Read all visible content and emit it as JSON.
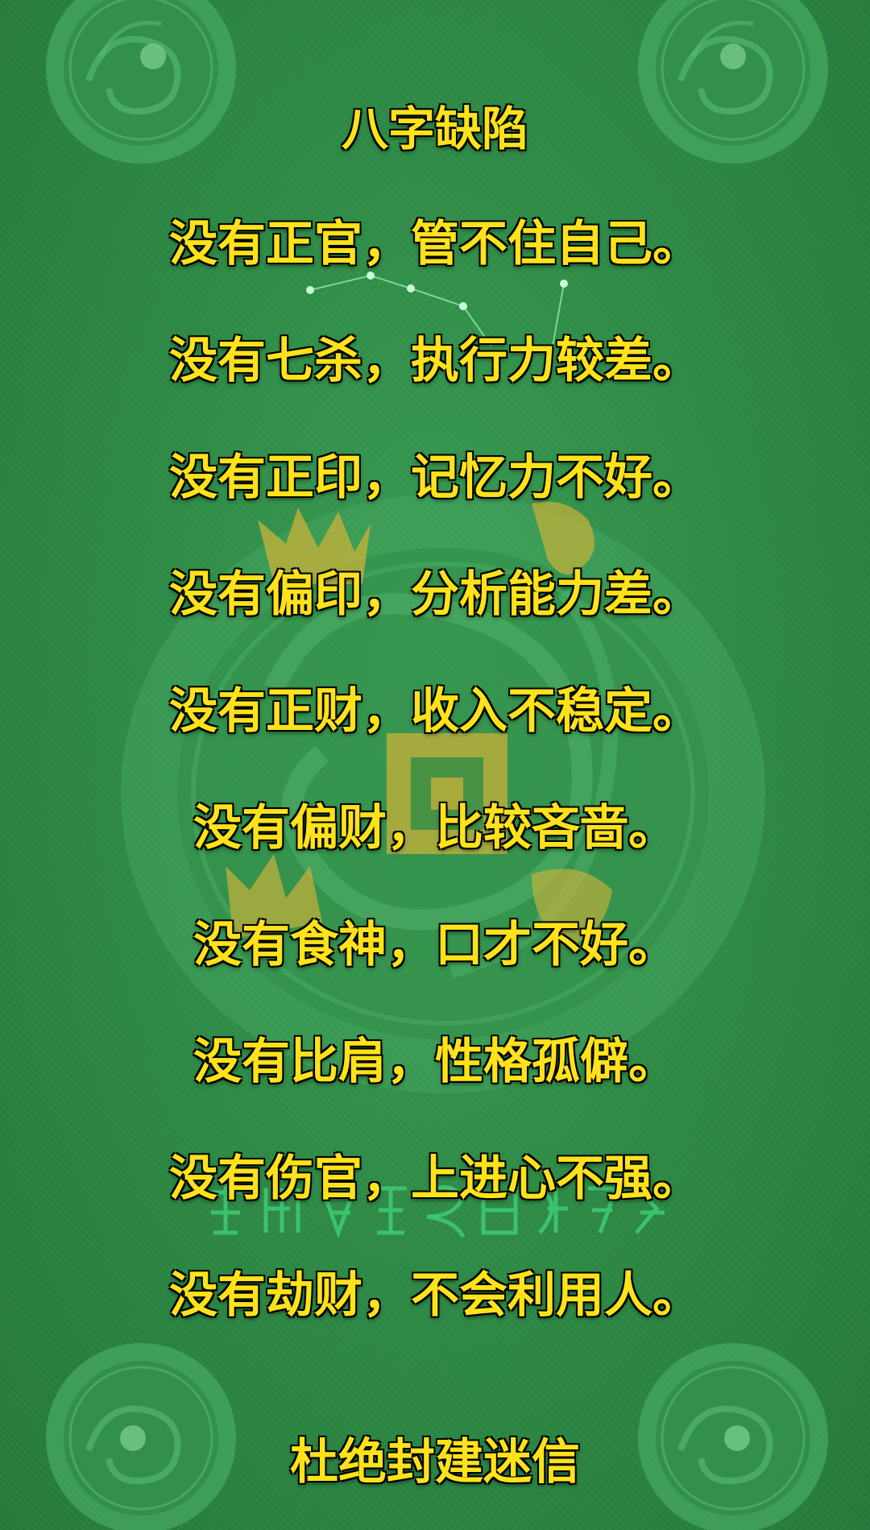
{
  "title": "八字缺陷",
  "lines": [
    "没有正官，管不住自己。",
    "没有七杀，执行力较差。",
    "没有正印，记忆力不好。",
    "没有偏印，分析能力差。",
    "没有正财，收入不稳定。",
    "没有偏财，比较吝啬。",
    "没有食神，口才不好。",
    "没有比肩，性格孤僻。",
    "没有伤官，上进心不强。",
    "没有劫财，不会利用人。"
  ],
  "footer": "杜绝封建迷信",
  "colors": {
    "background": "#2f8c47",
    "text": "#ffe21a",
    "text_outline": "#000000",
    "ornament": "#4fb56a"
  },
  "ornaments": [
    "dragon-coin-icon",
    "dragon-seal-icon",
    "constellation-icon",
    "seal-script-glyphs"
  ]
}
